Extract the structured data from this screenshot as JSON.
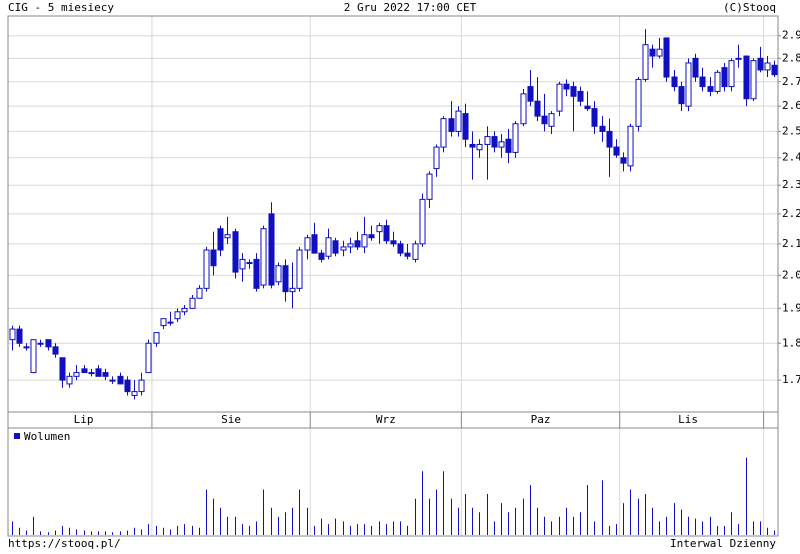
{
  "header": {
    "title": "CIG - 5 miesiecy",
    "date": "2 Gru 2022 17:00 CET",
    "copyright": "(C)Stooq"
  },
  "footer": {
    "url": "https://stooq.pl/",
    "interval": "Interwal Dzienny"
  },
  "chart_data": [
    {
      "type": "candlestick",
      "color": "#1010c0",
      "log_scale": true,
      "grid": true,
      "open": [
        1.81,
        1.84,
        1.79,
        1.72,
        1.8,
        1.81,
        1.79,
        1.76,
        1.69,
        1.71,
        1.73,
        1.72,
        1.73,
        1.72,
        1.7,
        1.71,
        1.7,
        1.66,
        1.67,
        1.72,
        1.8,
        1.85,
        1.86,
        1.87,
        1.89,
        1.9,
        1.93,
        1.96,
        2.08,
        2.15,
        2.12,
        2.14,
        2.02,
        2.04,
        2.05,
        1.97,
        2.2,
        1.98,
        2.03,
        1.95,
        1.96,
        2.08,
        2.13,
        2.07,
        2.06,
        2.11,
        2.08,
        2.09,
        2.11,
        2.09,
        2.13,
        2.14,
        2.16,
        2.11,
        2.1,
        2.07,
        2.05,
        2.1,
        2.25,
        2.36,
        2.44,
        2.55,
        2.5,
        2.57,
        2.45,
        2.43,
        2.45,
        2.48,
        2.44,
        2.47,
        2.42,
        2.53,
        2.68,
        2.62,
        2.56,
        2.52,
        2.58,
        2.69,
        2.68,
        2.66,
        2.6,
        2.59,
        2.52,
        2.5,
        2.44,
        2.4,
        2.37,
        2.52,
        2.71,
        2.84,
        2.81,
        2.89,
        2.72,
        2.68,
        2.6,
        2.8,
        2.72,
        2.68,
        2.66,
        2.76,
        2.68,
        2.8,
        2.81,
        2.63,
        2.8,
        2.75,
        2.77
      ],
      "high": [
        1.85,
        1.85,
        1.8,
        1.81,
        1.81,
        1.81,
        1.8,
        1.76,
        1.72,
        1.74,
        1.74,
        1.73,
        1.74,
        1.73,
        1.71,
        1.72,
        1.71,
        1.7,
        1.72,
        1.81,
        1.83,
        1.87,
        1.89,
        1.9,
        1.91,
        1.94,
        1.97,
        2.09,
        2.14,
        2.16,
        2.19,
        2.15,
        2.07,
        2.05,
        2.07,
        2.16,
        2.24,
        2.04,
        2.05,
        2.04,
        2.09,
        2.13,
        2.17,
        2.08,
        2.15,
        2.12,
        2.11,
        2.12,
        2.14,
        2.19,
        2.16,
        2.17,
        2.18,
        2.14,
        2.11,
        2.1,
        2.11,
        2.27,
        2.35,
        2.45,
        2.56,
        2.62,
        2.6,
        2.61,
        2.5,
        2.47,
        2.52,
        2.5,
        2.49,
        2.51,
        2.54,
        2.67,
        2.75,
        2.72,
        2.65,
        2.58,
        2.7,
        2.71,
        2.7,
        2.68,
        2.66,
        2.62,
        2.56,
        2.55,
        2.47,
        2.42,
        2.53,
        2.72,
        2.93,
        2.86,
        2.89,
        2.89,
        2.75,
        2.7,
        2.8,
        2.82,
        2.76,
        2.72,
        2.75,
        2.78,
        2.8,
        2.86,
        2.81,
        2.8,
        2.85,
        2.81,
        2.79
      ],
      "low": [
        1.78,
        1.79,
        1.78,
        1.72,
        1.79,
        1.78,
        1.76,
        1.68,
        1.68,
        1.7,
        1.72,
        1.71,
        1.71,
        1.7,
        1.69,
        1.69,
        1.66,
        1.65,
        1.66,
        1.72,
        1.79,
        1.84,
        1.85,
        1.86,
        1.88,
        1.9,
        1.93,
        1.95,
        2.0,
        2.06,
        2.1,
        1.99,
        1.98,
        2.02,
        1.95,
        1.96,
        1.96,
        1.97,
        1.92,
        1.9,
        1.95,
        2.05,
        2.07,
        2.04,
        2.05,
        2.06,
        2.06,
        2.07,
        2.08,
        2.07,
        2.11,
        2.1,
        2.1,
        2.09,
        2.06,
        2.05,
        2.04,
        2.09,
        2.22,
        2.33,
        2.42,
        2.48,
        2.48,
        2.44,
        2.32,
        2.4,
        2.32,
        2.42,
        2.4,
        2.38,
        2.4,
        2.52,
        2.6,
        2.54,
        2.5,
        2.49,
        2.56,
        2.64,
        2.5,
        2.6,
        2.58,
        2.49,
        2.46,
        2.33,
        2.4,
        2.35,
        2.35,
        2.5,
        2.7,
        2.76,
        2.8,
        2.7,
        2.66,
        2.58,
        2.58,
        2.7,
        2.66,
        2.64,
        2.65,
        2.66,
        2.66,
        2.76,
        2.6,
        2.62,
        2.74,
        2.72,
        2.72
      ],
      "close": [
        1.84,
        1.8,
        1.79,
        1.81,
        1.8,
        1.79,
        1.77,
        1.7,
        1.71,
        1.72,
        1.72,
        1.72,
        1.71,
        1.71,
        1.7,
        1.69,
        1.67,
        1.67,
        1.7,
        1.8,
        1.83,
        1.87,
        1.86,
        1.89,
        1.9,
        1.93,
        1.96,
        2.08,
        2.03,
        2.08,
        2.13,
        2.01,
        2.05,
        2.04,
        1.96,
        2.15,
        1.97,
        2.03,
        1.95,
        1.96,
        2.08,
        2.12,
        2.07,
        2.05,
        2.12,
        2.07,
        2.09,
        2.1,
        2.09,
        2.13,
        2.12,
        2.16,
        2.11,
        2.1,
        2.07,
        2.06,
        2.1,
        2.25,
        2.34,
        2.44,
        2.55,
        2.5,
        2.58,
        2.47,
        2.44,
        2.45,
        2.48,
        2.44,
        2.46,
        2.42,
        2.53,
        2.65,
        2.62,
        2.56,
        2.53,
        2.57,
        2.69,
        2.67,
        2.64,
        2.62,
        2.59,
        2.52,
        2.5,
        2.44,
        2.41,
        2.38,
        2.52,
        2.71,
        2.86,
        2.81,
        2.84,
        2.72,
        2.68,
        2.61,
        2.78,
        2.72,
        2.68,
        2.66,
        2.74,
        2.68,
        2.79,
        2.8,
        2.63,
        2.79,
        2.75,
        2.78,
        2.73
      ],
      "xlim": [
        -0.5,
        106.5
      ],
      "xticks": [
        19.5,
        41.5,
        62.5,
        84.5,
        104.5
      ],
      "month_labels": [
        {
          "value": 10,
          "label": "Lip"
        },
        {
          "value": 30.5,
          "label": "Sie"
        },
        {
          "value": 52,
          "label": "Wrz"
        },
        {
          "value": 73.5,
          "label": "Paz"
        },
        {
          "value": 94,
          "label": "Lis"
        }
      ],
      "ylim": [
        1.618,
        2.99
      ],
      "yticks": [
        1.7,
        1.8,
        1.9,
        {
          "value": 2,
          "label": "2.0"
        },
        2.1,
        2.2,
        2.3,
        2.4,
        2.5,
        2.6,
        2.7,
        2.8,
        2.9
      ]
    },
    {
      "type": "bar",
      "ylim": [
        0,
        100
      ],
      "xlim": [
        -0.5,
        106.5
      ],
      "series": [
        {
          "name": "Wolumen",
          "color": "#1010c0",
          "values": [
            15,
            8,
            5,
            20,
            4,
            3,
            5,
            10,
            8,
            6,
            5,
            4,
            4,
            4,
            3,
            4,
            5,
            8,
            6,
            12,
            10,
            8,
            6,
            10,
            12,
            10,
            8,
            50,
            40,
            30,
            20,
            20,
            12,
            10,
            15,
            50,
            30,
            20,
            25,
            30,
            50,
            30,
            10,
            18,
            12,
            18,
            15,
            10,
            12,
            12,
            10,
            15,
            12,
            15,
            15,
            10,
            40,
            70,
            40,
            50,
            70,
            40,
            30,
            45,
            30,
            25,
            45,
            15,
            35,
            25,
            30,
            40,
            55,
            30,
            20,
            15,
            20,
            30,
            20,
            25,
            55,
            15,
            60,
            10,
            12,
            35,
            50,
            40,
            45,
            30,
            15,
            20,
            35,
            28,
            20,
            18,
            15,
            20,
            10,
            10,
            25,
            12,
            85,
            15,
            15,
            8,
            5
          ]
        }
      ]
    }
  ]
}
